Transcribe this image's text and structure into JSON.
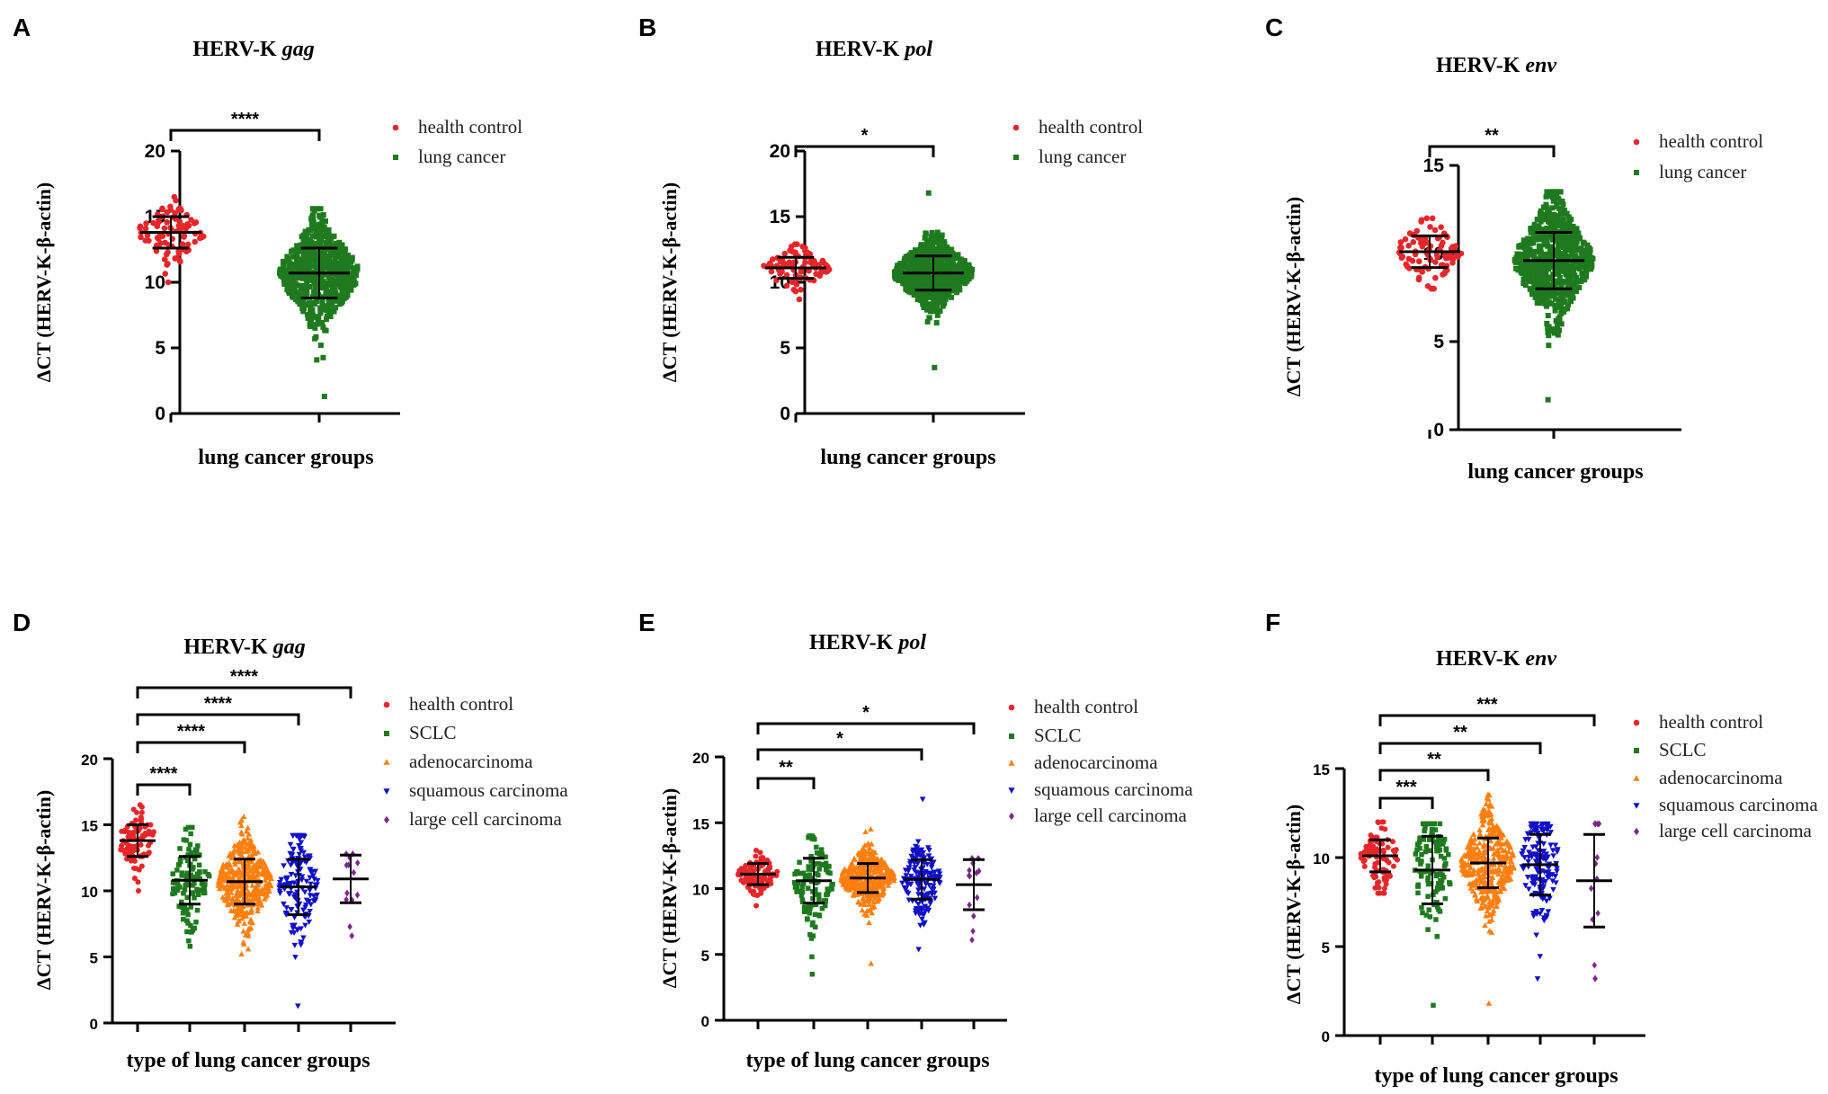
{
  "chart_data": [
    {
      "panel": "A",
      "type": "scatter",
      "title": "HERV-K",
      "title_italic": "gag",
      "xlabel": "lung cancer groups",
      "ylabel": "ΔCT (HERV-K-β-actin)",
      "ylim": [
        0,
        20
      ],
      "yticks": [
        0,
        5,
        10,
        15,
        20
      ],
      "legend": [
        "health control",
        "lung cancer"
      ],
      "groups": [
        {
          "name": "health control",
          "color": "#e8262a",
          "marker": "circle",
          "mean": 13.8,
          "sd": 1.2,
          "min": 10.0,
          "max": 16.5,
          "n": 90
        },
        {
          "name": "lung cancer",
          "color": "#1f7a1f",
          "marker": "square",
          "mean": 10.7,
          "sd": 1.9,
          "min": 1.3,
          "max": 15.6,
          "n": 650
        }
      ],
      "significance": [
        {
          "from": 0,
          "to": 1,
          "label": "****"
        }
      ]
    },
    {
      "panel": "B",
      "type": "scatter",
      "title": "HERV-K",
      "title_italic": "pol",
      "xlabel": "lung cancer groups",
      "ylabel": "ΔCT (HERV-K-β-actin)",
      "ylim": [
        0,
        20
      ],
      "yticks": [
        0,
        5,
        10,
        15,
        20
      ],
      "legend": [
        "health control",
        "lung cancer"
      ],
      "groups": [
        {
          "name": "health control",
          "color": "#e8262a",
          "marker": "circle",
          "mean": 11.1,
          "sd": 0.8,
          "min": 8.7,
          "max": 12.9,
          "n": 90
        },
        {
          "name": "lung cancer",
          "color": "#1f7a1f",
          "marker": "square",
          "mean": 10.7,
          "sd": 1.3,
          "min": 3.5,
          "max": 16.8,
          "n": 650
        }
      ],
      "significance": [
        {
          "from": 0,
          "to": 1,
          "label": "*"
        }
      ]
    },
    {
      "panel": "C",
      "type": "scatter",
      "title": "HERV-K",
      "title_italic": "env",
      "xlabel": "lung cancer groups",
      "ylabel": "ΔCT (HERV-K-β-actin)",
      "ylim": [
        0,
        15
      ],
      "yticks": [
        0,
        5,
        10,
        15
      ],
      "legend": [
        "health control",
        "lung cancer"
      ],
      "groups": [
        {
          "name": "health control",
          "color": "#e8262a",
          "marker": "circle",
          "mean": 10.1,
          "sd": 0.9,
          "min": 8.0,
          "max": 12.0,
          "n": 90
        },
        {
          "name": "lung cancer",
          "color": "#1f7a1f",
          "marker": "square",
          "mean": 9.6,
          "sd": 1.6,
          "min": 1.7,
          "max": 13.5,
          "n": 650
        }
      ],
      "significance": [
        {
          "from": 0,
          "to": 1,
          "label": "**"
        }
      ]
    },
    {
      "panel": "D",
      "type": "scatter",
      "title": "HERV-K",
      "title_italic": "gag",
      "xlabel": "type of lung cancer groups",
      "ylabel": "ΔCT (HERV-K-β-actin)",
      "ylim": [
        0,
        20
      ],
      "yticks": [
        0,
        5,
        10,
        15,
        20
      ],
      "legend": [
        "health control",
        "SCLC",
        "adenocarcinoma",
        "squamous carcinoma",
        "large cell carcinoma"
      ],
      "groups": [
        {
          "name": "health control",
          "color": "#e8262a",
          "marker": "circle",
          "mean": 13.8,
          "sd": 1.2,
          "min": 10.0,
          "max": 16.5,
          "n": 90
        },
        {
          "name": "SCLC",
          "color": "#1f7a1f",
          "marker": "square",
          "mean": 10.8,
          "sd": 1.8,
          "min": 5.8,
          "max": 14.8,
          "n": 110
        },
        {
          "name": "adenocarcinoma",
          "color": "#ff7f0e",
          "marker": "triangle-up",
          "mean": 10.7,
          "sd": 1.7,
          "min": 5.2,
          "max": 15.6,
          "n": 380
        },
        {
          "name": "squamous carcinoma",
          "color": "#1010c8",
          "marker": "triangle-down",
          "mean": 10.3,
          "sd": 2.1,
          "min": 1.3,
          "max": 14.2,
          "n": 150
        },
        {
          "name": "large cell carcinoma",
          "color": "#7b2a8c",
          "marker": "diamond",
          "mean": 10.9,
          "sd": 1.8,
          "min": 6.6,
          "max": 12.8,
          "n": 13
        }
      ],
      "significance": [
        {
          "from": 0,
          "to": 1,
          "label": "****"
        },
        {
          "from": 0,
          "to": 2,
          "label": "****"
        },
        {
          "from": 0,
          "to": 3,
          "label": "****"
        },
        {
          "from": 0,
          "to": 4,
          "label": "****"
        }
      ]
    },
    {
      "panel": "E",
      "type": "scatter",
      "title": "HERV-K",
      "title_italic": "pol",
      "xlabel": "type of lung cancer groups",
      "ylabel": "ΔCT (HERV-K-β-actin)",
      "ylim": [
        0,
        20
      ],
      "yticks": [
        0,
        5,
        10,
        15,
        20
      ],
      "legend": [
        "health control",
        "SCLC",
        "adenocarcinoma",
        "squamous carcinoma",
        "large cell carcinoma"
      ],
      "groups": [
        {
          "name": "health control",
          "color": "#e8262a",
          "marker": "circle",
          "mean": 11.1,
          "sd": 0.8,
          "min": 8.7,
          "max": 12.9,
          "n": 90
        },
        {
          "name": "SCLC",
          "color": "#1f7a1f",
          "marker": "square",
          "mean": 10.6,
          "sd": 1.7,
          "min": 3.5,
          "max": 14.0,
          "n": 110
        },
        {
          "name": "adenocarcinoma",
          "color": "#ff7f0e",
          "marker": "triangle-up",
          "mean": 10.8,
          "sd": 1.1,
          "min": 4.3,
          "max": 14.5,
          "n": 380
        },
        {
          "name": "squamous carcinoma",
          "color": "#1010c8",
          "marker": "triangle-down",
          "mean": 10.7,
          "sd": 1.5,
          "min": 5.4,
          "max": 16.8,
          "n": 150
        },
        {
          "name": "large cell carcinoma",
          "color": "#7b2a8c",
          "marker": "diamond",
          "mean": 10.3,
          "sd": 1.9,
          "min": 6.1,
          "max": 12.3,
          "n": 13
        }
      ],
      "significance": [
        {
          "from": 0,
          "to": 1,
          "label": "**"
        },
        {
          "from": 0,
          "to": 3,
          "label": "*"
        },
        {
          "from": 0,
          "to": 4,
          "label": "*"
        }
      ]
    },
    {
      "panel": "F",
      "type": "scatter",
      "title": "HERV-K",
      "title_italic": "env",
      "xlabel": "type of lung cancer groups",
      "ylabel": "ΔCT (HERV-K-β-actin)",
      "ylim": [
        0,
        15
      ],
      "yticks": [
        0,
        5,
        10,
        15
      ],
      "legend": [
        "health control",
        "SCLC",
        "adenocarcinoma",
        "squamous carcinoma",
        "large cell carcinoma"
      ],
      "groups": [
        {
          "name": "health control",
          "color": "#e8262a",
          "marker": "circle",
          "mean": 10.1,
          "sd": 0.9,
          "min": 8.0,
          "max": 12.0,
          "n": 90
        },
        {
          "name": "SCLC",
          "color": "#1f7a1f",
          "marker": "square",
          "mean": 9.3,
          "sd": 1.9,
          "min": 1.7,
          "max": 11.9,
          "n": 110
        },
        {
          "name": "adenocarcinoma",
          "color": "#ff7f0e",
          "marker": "triangle-up",
          "mean": 9.7,
          "sd": 1.4,
          "min": 1.8,
          "max": 13.5,
          "n": 380
        },
        {
          "name": "squamous carcinoma",
          "color": "#1010c8",
          "marker": "triangle-down",
          "mean": 9.6,
          "sd": 1.7,
          "min": 3.2,
          "max": 11.9,
          "n": 150
        },
        {
          "name": "large cell carcinoma",
          "color": "#7b2a8c",
          "marker": "diamond",
          "mean": 8.7,
          "sd": 2.6,
          "min": 3.2,
          "max": 11.9,
          "n": 13
        }
      ],
      "significance": [
        {
          "from": 0,
          "to": 1,
          "label": "***"
        },
        {
          "from": 0,
          "to": 2,
          "label": "**"
        },
        {
          "from": 0,
          "to": 3,
          "label": "**"
        },
        {
          "from": 0,
          "to": 4,
          "label": "***"
        }
      ]
    }
  ]
}
